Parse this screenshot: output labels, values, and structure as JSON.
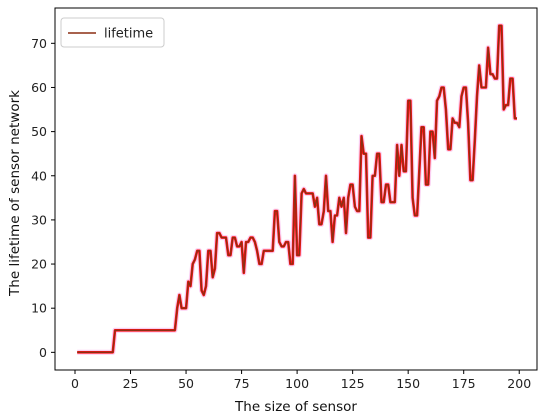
{
  "chart_data": {
    "type": "line",
    "xlabel": "The size of sensor",
    "ylabel": "The lifetime of sensor network",
    "xlim": [
      -9,
      208
    ],
    "ylim": [
      -4,
      78
    ],
    "xticks": [
      0,
      25,
      50,
      75,
      100,
      125,
      150,
      175,
      200
    ],
    "yticks": [
      0,
      10,
      20,
      30,
      40,
      50,
      60,
      70
    ],
    "grid": false,
    "legend": {
      "position": "top-left",
      "entries": [
        "lifetime"
      ]
    },
    "colors": {
      "line": "#8b2f14",
      "highlight": "#ff1010",
      "halo": "#f5a8e8"
    },
    "series": [
      {
        "name": "lifetime",
        "x": [
          1,
          2,
          3,
          4,
          5,
          6,
          7,
          8,
          9,
          10,
          11,
          12,
          13,
          14,
          15,
          16,
          17,
          18,
          19,
          20,
          21,
          22,
          23,
          24,
          25,
          26,
          27,
          28,
          29,
          30,
          31,
          32,
          33,
          34,
          35,
          36,
          37,
          38,
          39,
          40,
          41,
          42,
          43,
          44,
          45,
          46,
          47,
          48,
          49,
          50,
          51,
          52,
          53,
          54,
          55,
          56,
          57,
          58,
          59,
          60,
          61,
          62,
          63,
          64,
          65,
          66,
          67,
          68,
          69,
          70,
          71,
          72,
          73,
          74,
          75,
          76,
          77,
          78,
          79,
          80,
          81,
          82,
          83,
          84,
          85,
          86,
          87,
          88,
          89,
          90,
          91,
          92,
          93,
          94,
          95,
          96,
          97,
          98,
          99,
          100,
          101,
          102,
          103,
          104,
          105,
          106,
          107,
          108,
          109,
          110,
          111,
          112,
          113,
          114,
          115,
          116,
          117,
          118,
          119,
          120,
          121,
          122,
          123,
          124,
          125,
          126,
          127,
          128,
          129,
          130,
          131,
          132,
          133,
          134,
          135,
          136,
          137,
          138,
          139,
          140,
          141,
          142,
          143,
          144,
          145,
          146,
          147,
          148,
          149,
          150,
          151,
          152,
          153,
          154,
          155,
          156,
          157,
          158,
          159,
          160,
          161,
          162,
          163,
          164,
          165,
          166,
          167,
          168,
          169,
          170,
          171,
          172,
          173,
          174,
          175,
          176,
          177,
          178,
          179,
          180,
          181,
          182,
          183,
          184,
          185,
          186,
          187,
          188,
          189,
          190,
          191,
          192,
          193,
          194,
          195,
          196,
          197,
          198,
          199
        ],
        "values": [
          0,
          0,
          0,
          0,
          0,
          0,
          0,
          0,
          0,
          0,
          0,
          0,
          0,
          0,
          0,
          0,
          0,
          5,
          5,
          5,
          5,
          5,
          5,
          5,
          5,
          5,
          5,
          5,
          5,
          5,
          5,
          5,
          5,
          5,
          5,
          5,
          5,
          5,
          5,
          5,
          5,
          5,
          5,
          5,
          5,
          10,
          13,
          10,
          10,
          10,
          16,
          15,
          20,
          21,
          23,
          23,
          14,
          13,
          15,
          23,
          23,
          17,
          19,
          27,
          27,
          26,
          26,
          26,
          22,
          22,
          26,
          26,
          24,
          24,
          25,
          18,
          25,
          25,
          26,
          26,
          25,
          23,
          20,
          20,
          23,
          23,
          23,
          23,
          23,
          32,
          32,
          25,
          24,
          24,
          25,
          25,
          20,
          20,
          40,
          22,
          22,
          36,
          37,
          36,
          36,
          36,
          36,
          33,
          35,
          29,
          29,
          32,
          40,
          32,
          32,
          25,
          31,
          31,
          35,
          33,
          35,
          27,
          35,
          38,
          38,
          33,
          32,
          32,
          49,
          45,
          45,
          26,
          26,
          40,
          40,
          45,
          45,
          34,
          34,
          38,
          38,
          34,
          34,
          34,
          47,
          40,
          47,
          41,
          41,
          57,
          57,
          35,
          31,
          31,
          41,
          51,
          51,
          38,
          38,
          50,
          50,
          44,
          57,
          58,
          60,
          60,
          55,
          46,
          46,
          53,
          52,
          52,
          51,
          58,
          60,
          60,
          52,
          39,
          39,
          48,
          58,
          65,
          60,
          60,
          60,
          69,
          63,
          63,
          62,
          62,
          74,
          74,
          55,
          56,
          56,
          62,
          62,
          53,
          53
        ]
      }
    ]
  }
}
